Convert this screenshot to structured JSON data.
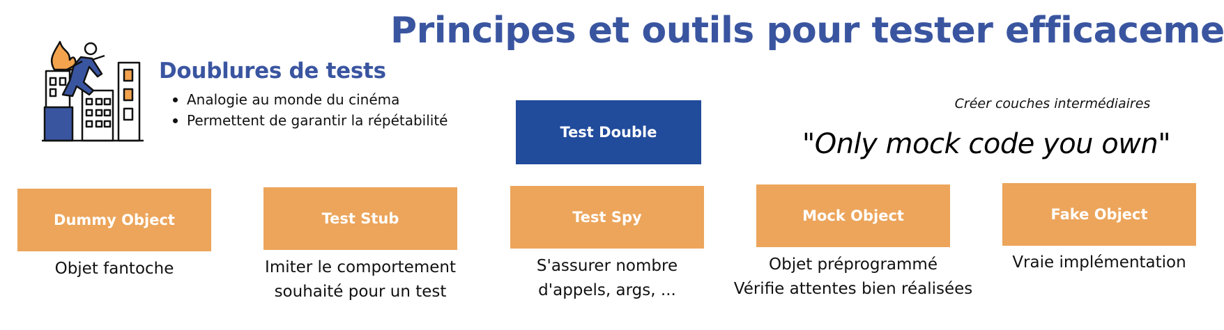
{
  "title": "Principes et outils pour tester efficacement",
  "section": {
    "heading": "Doublures de tests",
    "bullets": [
      "Analogie au monde du cinéma",
      "Permettent de garantir la répétabilité"
    ],
    "illustration_icon": "stuntman-escaping-burning-building-icon"
  },
  "root": {
    "label": "Test Double"
  },
  "note": "Créer couches intermédiaires",
  "quote": "\"Only mock code you own\"",
  "types": [
    {
      "label": "Dummy Object",
      "description": [
        "Objet fantoche"
      ]
    },
    {
      "label": "Test Stub",
      "description": [
        "Imiter le comportement",
        "souhaité pour un test"
      ]
    },
    {
      "label": "Test Spy",
      "description": [
        "S'assurer nombre",
        "d'appels, args, ..."
      ]
    },
    {
      "label": "Mock Object",
      "description": [
        "Objet préprogrammé",
        "Vérifie attentes bien réalisées"
      ]
    },
    {
      "label": "Fake Object",
      "description": [
        "Vraie implémentation"
      ]
    }
  ],
  "colors": {
    "title": "#3a55a0",
    "root_box": "#214b9b",
    "type_box": "#eca55b",
    "flame": "#f3a34d",
    "accent_orange": "#f3a34d",
    "figure_blue": "#3a55a0"
  }
}
